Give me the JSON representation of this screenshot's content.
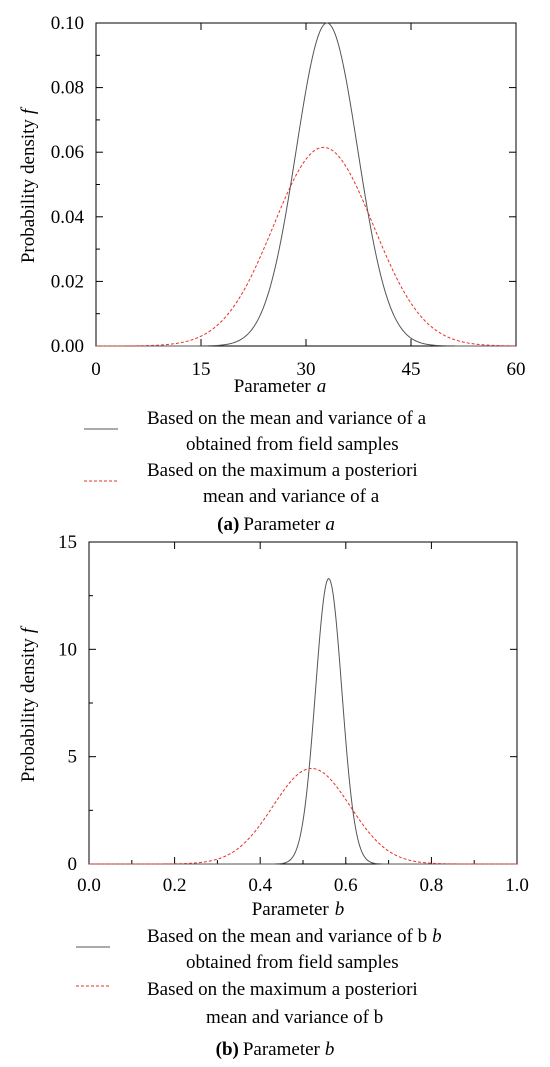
{
  "chart_data": [
    {
      "type": "line",
      "panel": "a",
      "xlim": [
        0,
        60
      ],
      "ylim": [
        0,
        0.1
      ],
      "xticks": [
        "0",
        "15",
        "30",
        "45",
        "60"
      ],
      "yticks": [
        "0.00",
        "0.02",
        "0.04",
        "0.06",
        "0.08",
        "0.10"
      ],
      "xlabel": "Parameter",
      "xlabel_var": "a",
      "ylabel": "Probability density",
      "ylabel_var": "f",
      "grid": false,
      "legend_position": "below",
      "series": [
        {
          "name": "Based on the mean and variance of a obtained from field samples",
          "legend_lines": [
            "Based on the mean and variance of a",
            "obtained from field samples"
          ],
          "style": "solid",
          "color": "#555555",
          "mean": 33.0,
          "peak": 0.1,
          "x": [
            20,
            24,
            27,
            30,
            33,
            36,
            39,
            42,
            46
          ],
          "y": [
            0.0011,
            0.0129,
            0.0411,
            0.0803,
            0.1,
            0.0803,
            0.0411,
            0.0129,
            0.0011
          ]
        },
        {
          "name": "Based on the maximum a posteriori mean and variance of a",
          "legend_lines": [
            "Based on the maximum a posteriori",
            "mean and variance of a"
          ],
          "style": "dashed",
          "color": "#e8302a",
          "mean": 32.5,
          "peak": 0.0615,
          "x": [
            12,
            17,
            22,
            27,
            32.5,
            38,
            43,
            48,
            53
          ],
          "y": [
            0.0007,
            0.0062,
            0.0236,
            0.0476,
            0.0615,
            0.0476,
            0.0236,
            0.0062,
            0.0007
          ]
        }
      ],
      "caption_label": "(a)",
      "caption_text": "Parameter",
      "caption_var": "a"
    },
    {
      "type": "line",
      "panel": "b",
      "xlim": [
        0,
        1.0
      ],
      "ylim": [
        0,
        15
      ],
      "xticks": [
        "0.0",
        "0.2",
        "0.4",
        "0.6",
        "0.8",
        "1.0"
      ],
      "yticks": [
        "0",
        "5",
        "10",
        "15"
      ],
      "xlabel": "Parameter",
      "xlabel_var": "b",
      "ylabel": "Probability density",
      "ylabel_var": "f",
      "grid": false,
      "legend_position": "below",
      "series": [
        {
          "name": "Based on the mean and variance of b obtained from field samples",
          "legend_lines": [
            "Based on the mean and variance of b",
            "obtained from field samples"
          ],
          "legend_var_line": 0,
          "style": "solid",
          "color": "#555555",
          "mean": 0.56,
          "peak": 13.3,
          "x": [
            0.47,
            0.5,
            0.53,
            0.56,
            0.59,
            0.62,
            0.65
          ],
          "y": [
            0.17,
            2.3,
            8.1,
            13.3,
            8.1,
            2.3,
            0.17
          ]
        },
        {
          "name": "Based on the maximum a posteriori mean and variance of b",
          "legend_lines": [
            "Based on the maximum a posteriori",
            "mean and variance of b"
          ],
          "legend_var_line": 1,
          "style": "dashed",
          "color": "#e8302a",
          "mean": 0.52,
          "peak": 4.45,
          "x": [
            0.25,
            0.34,
            0.43,
            0.52,
            0.61,
            0.7,
            0.79
          ],
          "y": [
            0.05,
            0.6,
            2.7,
            4.45,
            2.7,
            0.6,
            0.05
          ]
        }
      ],
      "caption_label": "(b)",
      "caption_text": "Parameter",
      "caption_var": "b"
    }
  ]
}
